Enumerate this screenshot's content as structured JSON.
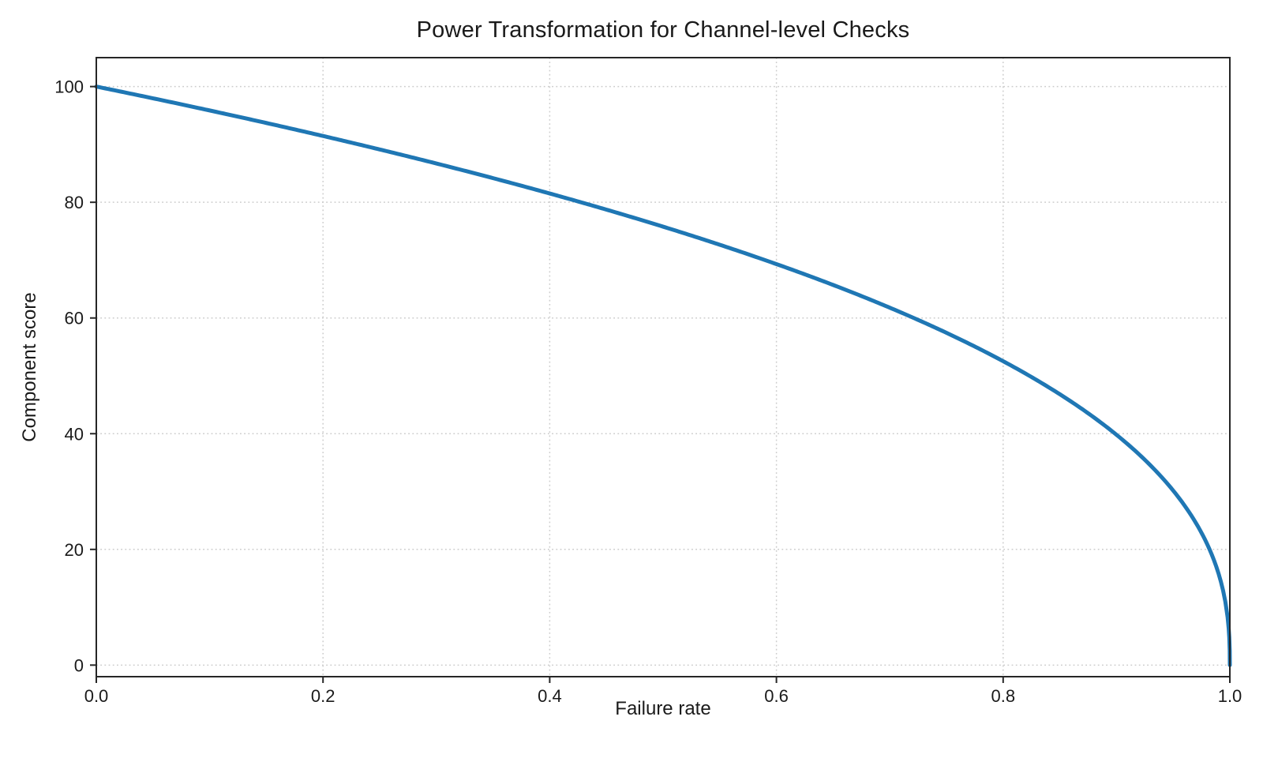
{
  "figure": {
    "background_color": "#ffffff"
  },
  "chart_data": {
    "type": "line",
    "title": "Power Transformation for Channel-level Checks",
    "xlabel": "Failure rate",
    "ylabel": "Component score",
    "xlim": [
      0.0,
      1.0
    ],
    "ylim": [
      -2,
      105
    ],
    "grid": true,
    "grid_style": "dotted",
    "grid_color": "#cccccc",
    "axis_color": "#262626",
    "text_color": "#1a1a1a",
    "legend": "none",
    "xticks": {
      "values": [
        0.0,
        0.2,
        0.4,
        0.6,
        0.8,
        1.0
      ],
      "labels": [
        "0.0",
        "0.2",
        "0.4",
        "0.6",
        "0.8",
        "1.0"
      ]
    },
    "yticks": {
      "values": [
        0,
        20,
        40,
        60,
        80,
        100
      ],
      "labels": [
        "0",
        "20",
        "40",
        "60",
        "80",
        "100"
      ]
    },
    "series": [
      {
        "name": "component-score-power-curve",
        "color": "#1f77b4",
        "line_width": 5,
        "formula": "y = 100 * (1 - x)^0.4",
        "scale": 100,
        "power_exponent": 0.4,
        "x": [
          0,
          0.05,
          0.1,
          0.15,
          0.2,
          0.25,
          0.3,
          0.35,
          0.4,
          0.45,
          0.5,
          0.55,
          0.6,
          0.65,
          0.7,
          0.75,
          0.8,
          0.85,
          0.9,
          0.95,
          0.98,
          0.99,
          0.999,
          1.0
        ],
        "y": [
          100,
          97.97,
          95.87,
          93.71,
          91.46,
          89.13,
          86.7,
          84.17,
          81.52,
          78.73,
          75.79,
          72.66,
          69.31,
          65.71,
          61.78,
          57.43,
          52.53,
          46.82,
          39.81,
          30.17,
          20.91,
          15.85,
          6.31,
          0
        ]
      }
    ]
  }
}
